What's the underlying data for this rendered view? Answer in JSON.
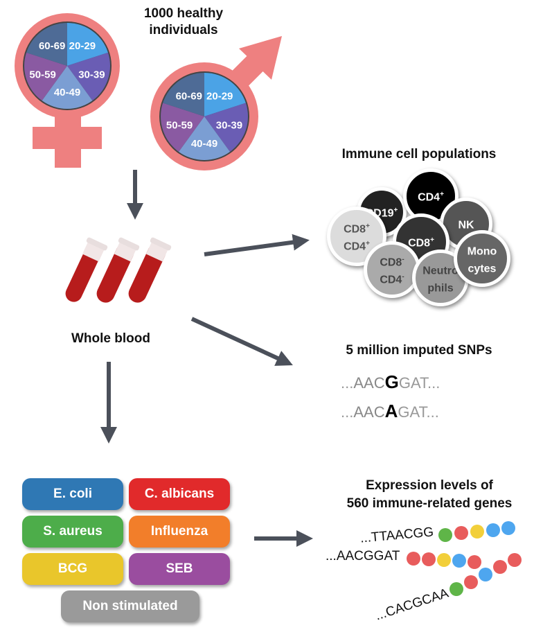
{
  "cohort": {
    "title_line1": "1000 healthy",
    "title_line2": "individuals",
    "age_groups": [
      "20-29",
      "30-39",
      "40-49",
      "50-59",
      "60-69"
    ],
    "age_colors": [
      "#4ba3e6",
      "#6a5db4",
      "#7b9ed3",
      "#8a5aa2",
      "#4e6b96"
    ],
    "symbol_color": "#ee8080"
  },
  "blood": {
    "label": "Whole blood"
  },
  "immune": {
    "title": "Immune cell populations",
    "cells": [
      {
        "line1": "CD19",
        "sup1": "+",
        "line2": "",
        "sup2": ""
      },
      {
        "line1": "CD4",
        "sup1": "+",
        "line2": "",
        "sup2": ""
      },
      {
        "line1": "NK",
        "sup1": "",
        "line2": "",
        "sup2": ""
      },
      {
        "line1": "CD8",
        "sup1": "+",
        "line2": "CD4",
        "sup2": "+"
      },
      {
        "line1": "CD8",
        "sup1": "+",
        "line2": "",
        "sup2": ""
      },
      {
        "line1": "CD8",
        "sup1": "-",
        "line2": "CD4",
        "sup2": "-"
      },
      {
        "line1": "Neutro",
        "sup1": "",
        "line2": "phils",
        "sup2": ""
      },
      {
        "line1": "Mono",
        "sup1": "",
        "line2": "cytes",
        "sup2": ""
      }
    ]
  },
  "snps": {
    "title": "5 million imputed SNPs",
    "row1": {
      "pre": "AAC",
      "alt": "G",
      "post": "GAT"
    },
    "row2": {
      "pre": "AAC",
      "alt": "A",
      "post": "GAT"
    },
    "ellipsis": "..."
  },
  "stimuli": {
    "items": [
      "E. coli",
      "C. albicans",
      "S. aureus",
      "Influenza",
      "BCG",
      "SEB",
      "Non stimulated"
    ],
    "colors": [
      "#2f78b4",
      "#e12a2b",
      "#4dad4a",
      "#f27e2a",
      "#e9c62b",
      "#9a4d9f",
      "#9a9a9a"
    ]
  },
  "expression": {
    "title_line1": "Expression levels of",
    "title_line2": "560 immune-related genes",
    "seqs": [
      "...TTAACGG",
      "...AACGGAT",
      "...CACGCAA"
    ]
  }
}
